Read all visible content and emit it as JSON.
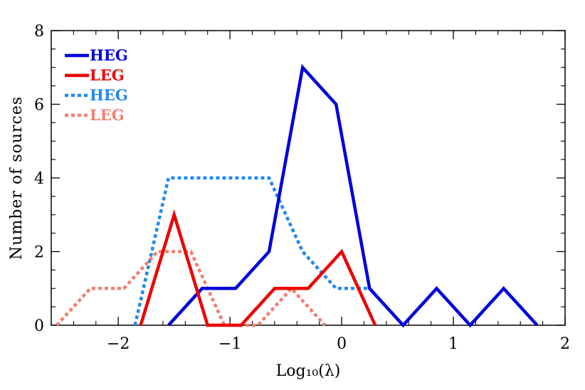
{
  "chart_data": {
    "type": "line",
    "title": "",
    "xlabel": "Log₁₀(λ)",
    "ylabel": "Number of sources",
    "xlim": [
      -2.6,
      2.0
    ],
    "ylim": [
      0,
      8
    ],
    "x_ticks": [
      -2,
      -1,
      0,
      1,
      2
    ],
    "x_tick_labels": [
      "−2",
      "−1",
      "0",
      "1",
      "2"
    ],
    "y_ticks": [
      0,
      2,
      4,
      6,
      8
    ],
    "y_tick_labels": [
      "0",
      "2",
      "4",
      "6",
      "8"
    ],
    "grid": false,
    "legend_position": "top-left",
    "series": [
      {
        "name": "HEG",
        "color": "#0000dd",
        "style": "solid",
        "x": [
          -1.55,
          -1.25,
          -0.95,
          -0.65,
          -0.35,
          -0.05,
          0.25,
          0.55,
          0.85,
          1.15,
          1.45,
          1.75
        ],
        "y": [
          0,
          1,
          1,
          2,
          7,
          6,
          1,
          0,
          1,
          0,
          1,
          0
        ]
      },
      {
        "name": "LEG",
        "color": "#ee0000",
        "style": "solid",
        "x": [
          -1.8,
          -1.5,
          -1.2,
          -0.9,
          -0.6,
          -0.3,
          0.0,
          0.3
        ],
        "y": [
          0,
          3,
          0,
          0,
          1,
          1,
          2,
          0
        ]
      },
      {
        "name": "HEG",
        "color": "#2288ee",
        "style": "dotted",
        "x": [
          -1.85,
          -1.55,
          -1.25,
          -0.95,
          -0.65,
          -0.35,
          -0.05,
          0.25,
          0.55
        ],
        "y": [
          0,
          4,
          4,
          4,
          4,
          2,
          1,
          1,
          0
        ]
      },
      {
        "name": "LEG",
        "color": "#f08070",
        "style": "dotted",
        "x": [
          -2.55,
          -2.25,
          -1.95,
          -1.65,
          -1.35,
          -1.05,
          -0.75,
          -0.45,
          -0.15
        ],
        "y": [
          0,
          1,
          1,
          2,
          2,
          0,
          0,
          1,
          0
        ]
      }
    ]
  }
}
